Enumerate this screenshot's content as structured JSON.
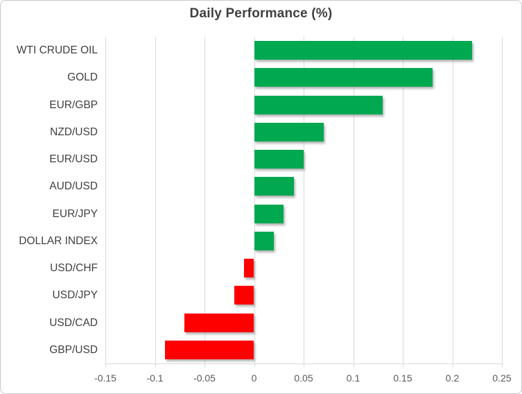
{
  "title": "Daily Performance (%)",
  "colors": {
    "positive": "#00a850",
    "negative": "#ff0000",
    "gridline": "#d9d9d9",
    "title_text": "#3f3f3f",
    "category_text": "#404040",
    "tick_text": "#595959"
  },
  "chart_data": {
    "type": "bar",
    "orientation": "horizontal",
    "title": "Daily Performance (%)",
    "categories": [
      "WTI CRUDE OIL",
      "GOLD",
      "EUR/GBP",
      "NZD/USD",
      "EUR/USD",
      "AUD/USD",
      "EUR/JPY",
      "DOLLAR INDEX",
      "USD/CHF",
      "USD/JPY",
      "USD/CAD",
      "GBP/USD"
    ],
    "values": [
      0.22,
      0.18,
      0.13,
      0.07,
      0.05,
      0.04,
      0.03,
      0.02,
      -0.01,
      -0.02,
      -0.07,
      -0.09
    ],
    "xlabel": "",
    "ylabel": "",
    "xlim": [
      -0.15,
      0.25
    ],
    "xticks": [
      -0.15,
      -0.1,
      -0.05,
      0,
      0.05,
      0.1,
      0.15,
      0.2,
      0.25
    ],
    "xtick_labels": [
      "-0.15",
      "-0.1",
      "-0.05",
      "0",
      "0.05",
      "0.1",
      "0.15",
      "0.2",
      "0.25"
    ],
    "grid": true,
    "legend": false,
    "positive_color": "#00a850",
    "negative_color": "#ff0000"
  }
}
